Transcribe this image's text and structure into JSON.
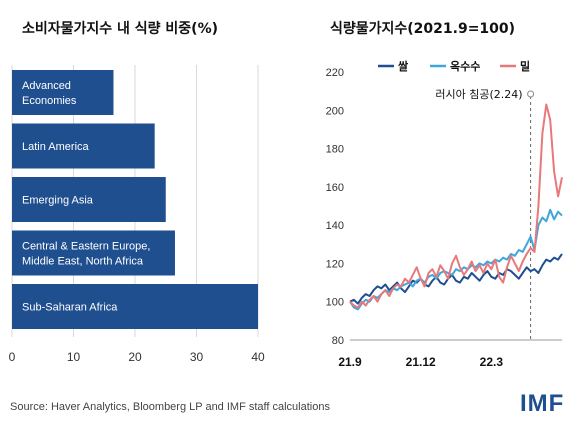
{
  "left_title": "소비자물가지수 내 식량 비중(%)",
  "right_title": "식량물가지수(2021.9=100)",
  "source": "Source: Haver Analytics, Bloomberg LP and IMF staff calculations",
  "logo_text": "IMF",
  "colors": {
    "bar": "#1f4f8f",
    "rice": "#1f4f8f",
    "corn": "#3fa6dc",
    "wheat": "#e8787a",
    "grid": "#d9d9d9"
  },
  "chart_data": [
    {
      "type": "bar",
      "orientation": "horizontal",
      "title": "소비자물가지수 내 식량 비중(%)",
      "categories": [
        [
          "Advanced",
          "Economies"
        ],
        [
          "Latin America"
        ],
        [
          "Emerging Asia"
        ],
        [
          "Central & Eastern Europe,",
          "Middle East, North Africa"
        ],
        [
          "Sub-Saharan Africa"
        ]
      ],
      "values": [
        16.5,
        23.2,
        25.0,
        26.5,
        40.0
      ],
      "xlim": [
        0,
        40
      ],
      "xticks": [
        0,
        10,
        20,
        30,
        40
      ],
      "grid": "vertical"
    },
    {
      "type": "line",
      "title": "식량물가지수(2021.9=100)",
      "ylim": [
        80,
        220
      ],
      "yticks": [
        80,
        100,
        120,
        140,
        160,
        180,
        200,
        220
      ],
      "xticks": [
        "21.9",
        "21.12",
        "22.3"
      ],
      "legend_position": "top",
      "annotation": "러시아 침공(2.24)",
      "series": [
        {
          "name": "쌀",
          "color_key": "rice",
          "values": [
            100,
            101,
            99,
            102,
            104,
            103,
            106,
            108,
            107,
            109,
            106,
            108,
            110,
            107,
            105,
            108,
            111,
            110,
            112,
            109,
            108,
            111,
            113,
            110,
            109,
            112,
            114,
            111,
            110,
            113,
            112,
            115,
            113,
            111,
            114,
            116,
            113,
            112,
            115,
            114,
            117,
            116,
            114,
            112,
            115,
            118,
            116,
            117,
            115,
            119,
            122,
            121,
            123,
            122,
            125
          ]
        },
        {
          "name": "옥수수",
          "color_key": "corn",
          "values": [
            100,
            97,
            96,
            99,
            101,
            100,
            103,
            102,
            104,
            106,
            105,
            107,
            106,
            108,
            109,
            110,
            108,
            111,
            112,
            110,
            113,
            114,
            112,
            115,
            116,
            115,
            114,
            117,
            116,
            118,
            117,
            119,
            118,
            120,
            119,
            121,
            120,
            122,
            121,
            123,
            122,
            125,
            124,
            127,
            126,
            130,
            134,
            127,
            140,
            144,
            142,
            148,
            143,
            147,
            145
          ]
        },
        {
          "name": "밀",
          "color_key": "wheat",
          "values": [
            100,
            98,
            97,
            100,
            98,
            101,
            103,
            100,
            104,
            106,
            103,
            107,
            109,
            108,
            112,
            110,
            114,
            118,
            112,
            108,
            115,
            117,
            113,
            119,
            116,
            112,
            120,
            124,
            118,
            114,
            117,
            121,
            116,
            119,
            115,
            120,
            117,
            122,
            113,
            110,
            118,
            124,
            120,
            116,
            121,
            125,
            128,
            126,
            150,
            188,
            203,
            195,
            168,
            155,
            165
          ]
        }
      ]
    }
  ]
}
